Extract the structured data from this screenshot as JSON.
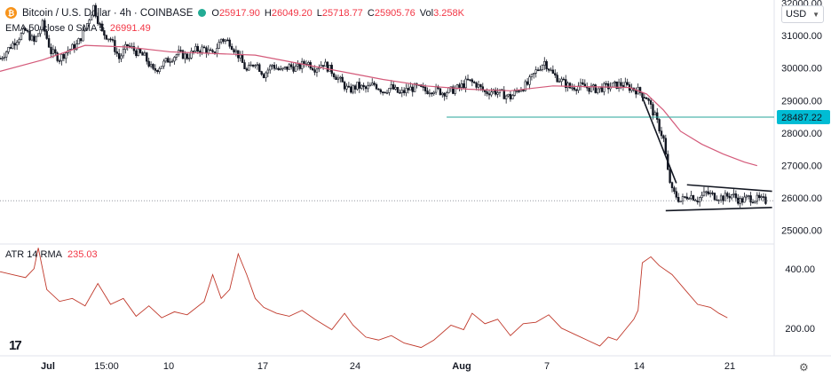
{
  "header": {
    "symbol_title": "Bitcoin / U.S. Dollar · 4h · COINBASE",
    "ohlc": [
      {
        "label": "O",
        "value": "25917.90"
      },
      {
        "label": "H",
        "value": "26049.20"
      },
      {
        "label": "L",
        "value": "25718.77"
      },
      {
        "label": "C",
        "value": "25905.76"
      },
      {
        "label": "Vol",
        "value": "3.258K"
      }
    ],
    "currency": "USD",
    "logo_letter": "₿"
  },
  "ema_legend": {
    "name": "EMA 50 close 0 SMA 5",
    "value": "26991.49"
  },
  "atr_legend": {
    "name": "ATR 14 RMA",
    "value": "235.03"
  },
  "colors": {
    "up": "#22ab94",
    "down": "#f23645",
    "candle": "#131722",
    "ema": "#d45a7a",
    "atr": "#c0392b",
    "level": "#26a69a",
    "level_label_bg": "#00bcd4"
  },
  "chart_data": [
    {
      "type": "candlestick",
      "title": "Bitcoin / U.S. Dollar · 4h · COINBASE",
      "y_ticks": [
        25000,
        26000,
        27000,
        28000,
        29000,
        30000,
        31000,
        32000
      ],
      "y_tick_labels": [
        "25000.00",
        "26000.00",
        "27000.00",
        "28000.00",
        "29000.00",
        "30000.00",
        "31000.00",
        "32000.00"
      ],
      "ylim": [
        24600,
        32100
      ],
      "x_labels": [
        "Jul",
        "15:00",
        "10",
        "17",
        "24",
        "Aug",
        "7",
        "14",
        "21"
      ],
      "x_label_bold": [
        "Jul",
        "Aug"
      ],
      "close_path": [
        [
          0,
          30300
        ],
        [
          4,
          30600
        ],
        [
          8,
          30900
        ],
        [
          12,
          31150
        ],
        [
          16,
          30800
        ],
        [
          20,
          31350
        ],
        [
          24,
          30500
        ],
        [
          28,
          30300
        ],
        [
          32,
          30550
        ],
        [
          36,
          30700
        ],
        [
          40,
          31200
        ],
        [
          44,
          31900
        ],
        [
          48,
          31100
        ],
        [
          52,
          30900
        ],
        [
          56,
          30300
        ],
        [
          60,
          30700
        ],
        [
          64,
          30500
        ],
        [
          68,
          30350
        ],
        [
          72,
          29900
        ],
        [
          76,
          30100
        ],
        [
          80,
          30300
        ],
        [
          84,
          30450
        ],
        [
          88,
          30350
        ],
        [
          92,
          30550
        ],
        [
          96,
          30600
        ],
        [
          100,
          30400
        ],
        [
          104,
          30900
        ],
        [
          108,
          30800
        ],
        [
          112,
          30400
        ],
        [
          116,
          29900
        ],
        [
          120,
          30200
        ],
        [
          124,
          29800
        ],
        [
          128,
          30100
        ],
        [
          132,
          29900
        ],
        [
          136,
          30050
        ],
        [
          140,
          30000
        ],
        [
          144,
          30200
        ],
        [
          148,
          30000
        ],
        [
          152,
          30150
        ],
        [
          156,
          29900
        ],
        [
          160,
          29600
        ],
        [
          164,
          29300
        ],
        [
          168,
          29450
        ],
        [
          172,
          29350
        ],
        [
          176,
          29500
        ],
        [
          180,
          29300
        ],
        [
          184,
          29400
        ],
        [
          188,
          29200
        ],
        [
          192,
          29350
        ],
        [
          196,
          29400
        ],
        [
          200,
          29300
        ],
        [
          204,
          29350
        ],
        [
          208,
          29250
        ],
        [
          212,
          29300
        ],
        [
          216,
          29400
        ],
        [
          220,
          29600
        ],
        [
          224,
          29500
        ],
        [
          228,
          29250
        ],
        [
          232,
          29300
        ],
        [
          236,
          29200
        ],
        [
          240,
          29100
        ],
        [
          244,
          29350
        ],
        [
          248,
          29500
        ],
        [
          252,
          29900
        ],
        [
          256,
          30200
        ],
        [
          260,
          29800
        ],
        [
          264,
          29600
        ],
        [
          268,
          29400
        ],
        [
          272,
          29450
        ],
        [
          276,
          29400
        ],
        [
          280,
          29350
        ],
        [
          284,
          29400
        ],
        [
          288,
          29450
        ],
        [
          292,
          29500
        ],
        [
          296,
          29400
        ],
        [
          300,
          29300
        ],
        [
          304,
          29100
        ],
        [
          308,
          28500
        ],
        [
          312,
          27800
        ],
        [
          314,
          26800
        ],
        [
          316,
          26200
        ],
        [
          318,
          26050
        ],
        [
          320,
          25900
        ],
        [
          324,
          26100
        ],
        [
          328,
          25950
        ],
        [
          332,
          26150
        ],
        [
          336,
          26050
        ],
        [
          340,
          26000
        ],
        [
          344,
          26100
        ],
        [
          348,
          25900
        ],
        [
          352,
          26000
        ],
        [
          356,
          25950
        ],
        [
          360,
          25900
        ]
      ],
      "price_level": {
        "value": 28487.22,
        "label": "28487.22",
        "x_from": 210
      },
      "current_price": 25905.76,
      "triangle": {
        "upper": [
          [
            323,
            26400
          ],
          [
            363,
            26200
          ]
        ],
        "lower": [
          [
            313,
            25600
          ],
          [
            363,
            25700
          ]
        ],
        "pole": [
          [
            302,
            29100
          ],
          [
            318,
            26450
          ]
        ]
      },
      "ema_series": {
        "name": "EMA 50 close 0 SMA 5",
        "value": 26991.49,
        "points": [
          [
            0,
            29900
          ],
          [
            20,
            30250
          ],
          [
            40,
            30700
          ],
          [
            60,
            30650
          ],
          [
            80,
            30500
          ],
          [
            100,
            30450
          ],
          [
            120,
            30400
          ],
          [
            140,
            30150
          ],
          [
            160,
            29900
          ],
          [
            180,
            29650
          ],
          [
            200,
            29450
          ],
          [
            220,
            29350
          ],
          [
            240,
            29300
          ],
          [
            260,
            29450
          ],
          [
            280,
            29420
          ],
          [
            296,
            29400
          ],
          [
            304,
            29200
          ],
          [
            312,
            28700
          ],
          [
            320,
            28050
          ],
          [
            330,
            27650
          ],
          [
            340,
            27350
          ],
          [
            350,
            27100
          ],
          [
            356,
            26991
          ]
        ]
      }
    },
    {
      "type": "line",
      "title": "ATR 14 RMA",
      "value": 235.03,
      "y_ticks": [
        200,
        400
      ],
      "y_tick_labels": [
        "200.00",
        "400.00"
      ],
      "ylim": [
        110,
        480
      ],
      "series": [
        {
          "name": "ATR 14 RMA",
          "points": [
            [
              0,
              390
            ],
            [
              6,
              380
            ],
            [
              12,
              370
            ],
            [
              16,
              400
            ],
            [
              18,
              470
            ],
            [
              22,
              330
            ],
            [
              28,
              290
            ],
            [
              34,
              300
            ],
            [
              40,
              275
            ],
            [
              46,
              350
            ],
            [
              52,
              280
            ],
            [
              58,
              300
            ],
            [
              64,
              240
            ],
            [
              70,
              275
            ],
            [
              76,
              235
            ],
            [
              82,
              255
            ],
            [
              88,
              245
            ],
            [
              96,
              290
            ],
            [
              100,
              380
            ],
            [
              104,
              300
            ],
            [
              108,
              330
            ],
            [
              112,
              450
            ],
            [
              116,
              380
            ],
            [
              120,
              300
            ],
            [
              124,
              270
            ],
            [
              130,
              250
            ],
            [
              136,
              240
            ],
            [
              142,
              260
            ],
            [
              148,
              230
            ],
            [
              156,
              195
            ],
            [
              162,
              250
            ],
            [
              166,
              210
            ],
            [
              172,
              170
            ],
            [
              178,
              160
            ],
            [
              184,
              175
            ],
            [
              190,
              150
            ],
            [
              198,
              135
            ],
            [
              204,
              160
            ],
            [
              212,
              210
            ],
            [
              218,
              195
            ],
            [
              222,
              250
            ],
            [
              228,
              215
            ],
            [
              234,
              230
            ],
            [
              240,
              175
            ],
            [
              246,
              215
            ],
            [
              252,
              220
            ],
            [
              258,
              245
            ],
            [
              264,
              200
            ],
            [
              270,
              180
            ],
            [
              276,
              160
            ],
            [
              282,
              140
            ],
            [
              286,
              170
            ],
            [
              290,
              160
            ],
            [
              294,
              195
            ],
            [
              298,
              230
            ],
            [
              300,
              260
            ],
            [
              302,
              420
            ],
            [
              306,
              440
            ],
            [
              310,
              410
            ],
            [
              316,
              380
            ],
            [
              322,
              330
            ],
            [
              328,
              280
            ],
            [
              334,
              270
            ],
            [
              338,
              250
            ],
            [
              342,
              235
            ]
          ]
        }
      ]
    }
  ]
}
